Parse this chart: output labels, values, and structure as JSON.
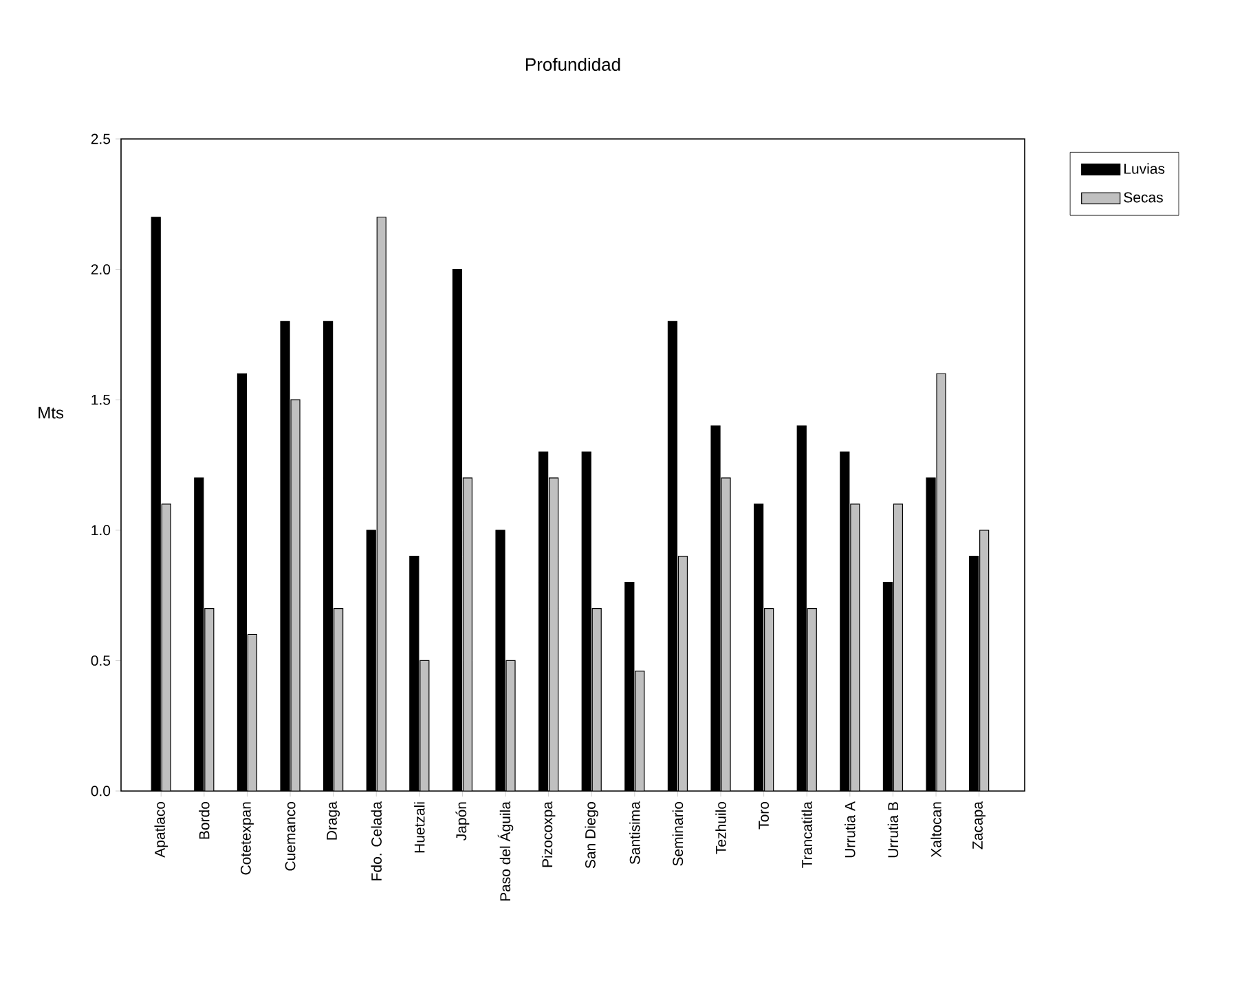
{
  "chart_data": {
    "type": "bar",
    "title": "Profundidad",
    "ylabel": "Mts",
    "categories": [
      "Apatlaco",
      "Bordo",
      "Cotetexpan",
      "Cuemanco",
      "Draga",
      "Fdo. Celada",
      "Huetzali",
      "Japón",
      "Paso del Águila",
      "Pizocoxpa",
      "San Diego",
      "Santisima",
      "Seminario",
      "Tezhuilo",
      "Toro",
      "Trancatitla",
      "Urrutia A",
      "Urrutia B",
      "Xaltocan",
      "Zacapa"
    ],
    "series": [
      {
        "name": "Luvias",
        "color": "#000000",
        "values": [
          2.2,
          1.2,
          1.6,
          1.8,
          1.8,
          1.0,
          0.9,
          2.0,
          1.0,
          1.3,
          1.3,
          0.8,
          1.8,
          1.4,
          1.1,
          1.4,
          1.3,
          0.8,
          1.2,
          0.9
        ]
      },
      {
        "name": "Secas",
        "color": "#c0c0c0",
        "values": [
          1.1,
          0.7,
          0.6,
          1.5,
          0.7,
          2.2,
          0.5,
          1.2,
          0.5,
          1.2,
          0.7,
          0.46,
          0.9,
          1.2,
          0.7,
          0.7,
          1.1,
          1.1,
          1.6,
          1.0
        ]
      }
    ],
    "ylim": [
      0,
      2.5
    ],
    "yticks": [
      {
        "value": 0,
        "label": "0.0"
      },
      {
        "value": 0.5,
        "label": "0.5"
      },
      {
        "value": 1.0,
        "label": "1.0"
      },
      {
        "value": 1.5,
        "label": "1.5"
      },
      {
        "value": 2.0,
        "label": "2.0"
      },
      {
        "value": 2.5,
        "label": "2.5"
      }
    ],
    "legend": "right"
  }
}
